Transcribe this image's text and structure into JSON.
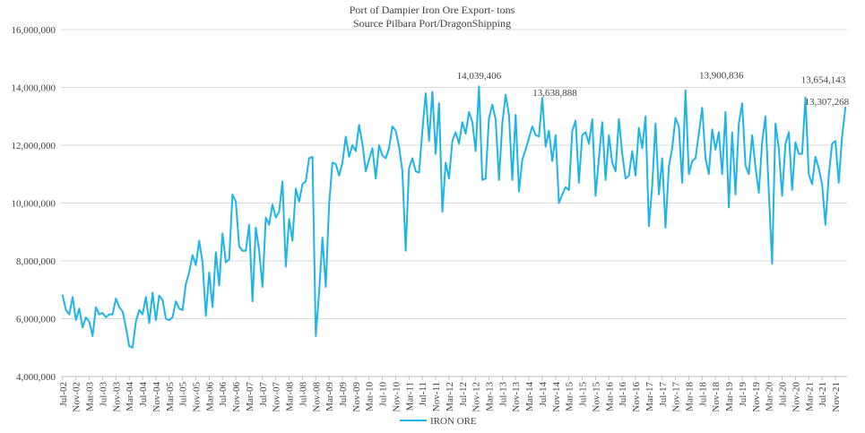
{
  "chart_data": {
    "type": "line",
    "title": "Port of Dampier Iron Ore Export- tons",
    "subtitle": "Source Pilbara Port/DragonShipping",
    "xlabel": "",
    "ylabel": "",
    "ylim": [
      4000000,
      16000000
    ],
    "yticks": [
      4000000,
      6000000,
      8000000,
      10000000,
      12000000,
      14000000,
      16000000
    ],
    "ytick_labels": [
      "4,000,000",
      "6,000,000",
      "8,000,000",
      "10,000,000",
      "12,000,000",
      "14,000,000",
      "16,000,000"
    ],
    "grid": true,
    "legend_position": "bottom",
    "color": "#1fb4e8",
    "start_month": "Jul-02",
    "x_tick_labels": [
      "Jul-02",
      "Nov-02",
      "Mar-03",
      "Jul-03",
      "Nov-03",
      "Mar-04",
      "Jul-04",
      "Nov-04",
      "Mar-05",
      "Jul-05",
      "Nov-05",
      "Mar-06",
      "Jul-06",
      "Nov-06",
      "Mar-07",
      "Jul-07",
      "Nov-07",
      "Mar-08",
      "Jul-08",
      "Nov-08",
      "Mar-09",
      "Jul-09",
      "Nov-09",
      "Mar-10",
      "Jul-10",
      "Nov-10",
      "Mar-11",
      "Jul-11",
      "Nov-11",
      "Mar-12",
      "Jul-12",
      "Nov-12",
      "Mar-13",
      "Jul-13",
      "Nov-13",
      "Mar-14",
      "Jul-14",
      "Nov-14",
      "Mar-15",
      "Jul-15",
      "Nov-15",
      "Mar-16",
      "Jul-16",
      "Nov-16",
      "Mar-17",
      "Jul-17",
      "Nov-17",
      "Mar-18",
      "Jul-18",
      "Nov-18",
      "Mar-19",
      "Jul-19",
      "Nov-19",
      "Mar-20",
      "Jul-20",
      "Nov-20",
      "Mar-21",
      "Jul-21",
      "Nov-21"
    ],
    "series": [
      {
        "name": "IRON ORE",
        "values": [
          6800000,
          6300000,
          6150000,
          6750000,
          5950000,
          6350000,
          5700000,
          6050000,
          5900000,
          5400000,
          6400000,
          6150000,
          6200000,
          6050000,
          6150000,
          6150000,
          6700000,
          6400000,
          6250000,
          5700000,
          5050000,
          5000000,
          5900000,
          6300000,
          6150000,
          6750000,
          5850000,
          6900000,
          5950000,
          6800000,
          6650000,
          6000000,
          5950000,
          6050000,
          6600000,
          6350000,
          6300000,
          7200000,
          7600000,
          8200000,
          7850000,
          8700000,
          7950000,
          6100000,
          7600000,
          6400000,
          8300000,
          7150000,
          8950000,
          7950000,
          8050000,
          10300000,
          10050000,
          8500000,
          8350000,
          8350000,
          9250000,
          6600000,
          9150000,
          8350000,
          7100000,
          9500000,
          9250000,
          9950000,
          9500000,
          9700000,
          10750000,
          7800000,
          9450000,
          8700000,
          10500000,
          10050000,
          10650000,
          10750000,
          11550000,
          11600000,
          5400000,
          6900000,
          8800000,
          7100000,
          9950000,
          11400000,
          11350000,
          10950000,
          11400000,
          12300000,
          11600000,
          12000000,
          11800000,
          12700000,
          12050000,
          11100000,
          11500000,
          11900000,
          10850000,
          12000000,
          11650000,
          11550000,
          11900000,
          12650000,
          12500000,
          11950000,
          11100000,
          8350000,
          11200000,
          11550000,
          11100000,
          11050000,
          12500000,
          13800000,
          12150000,
          13850000,
          11700000,
          13450000,
          9700000,
          11400000,
          10850000,
          12150000,
          12450000,
          12050000,
          12800000,
          12400000,
          13150000,
          12800000,
          11800000,
          14039406,
          10800000,
          10850000,
          12950000,
          13400000,
          12900000,
          10800000,
          12750000,
          13750000,
          13050000,
          10800000,
          13050000,
          10400000,
          11500000,
          11850000,
          12250000,
          12650000,
          12350000,
          12300000,
          13638888,
          11950000,
          12500000,
          11450000,
          12350000,
          10000000,
          10300000,
          10550000,
          10450000,
          12500000,
          12850000,
          10700000,
          12350000,
          12450000,
          12050000,
          12900000,
          10250000,
          11550000,
          12800000,
          10800000,
          12350000,
          11400000,
          11100000,
          12900000,
          11700000,
          10850000,
          10950000,
          11800000,
          10950000,
          12600000,
          11900000,
          13000000,
          9200000,
          10600000,
          12750000,
          10300000,
          11550000,
          9150000,
          11250000,
          11900000,
          12950000,
          12650000,
          10700000,
          13900836,
          11000000,
          11450000,
          11550000,
          12400000,
          13300000,
          11550000,
          11000000,
          12550000,
          11850000,
          12450000,
          11000000,
          13150000,
          9850000,
          12450000,
          10300000,
          12750000,
          13450000,
          11300000,
          11000000,
          12350000,
          11250000,
          10350000,
          12100000,
          13000000,
          10400000,
          7900000,
          12750000,
          11900000,
          10250000,
          12050000,
          12450000,
          10450000,
          12100000,
          11700000,
          11700000,
          13654143,
          11000000,
          10650000,
          11600000,
          11200000,
          10650000,
          9250000,
          10950000,
          12050000,
          12150000,
          10700000,
          12300000,
          13307268
        ]
      }
    ],
    "annotations": [
      {
        "label": "14,039,406",
        "value": 14039406
      },
      {
        "label": "13,638,888",
        "value": 13638888
      },
      {
        "label": "13,900,836",
        "value": 13900836
      },
      {
        "label": "13,654,143",
        "value": 13654143
      },
      {
        "label": "13,307,268",
        "value": 13307268
      }
    ]
  }
}
